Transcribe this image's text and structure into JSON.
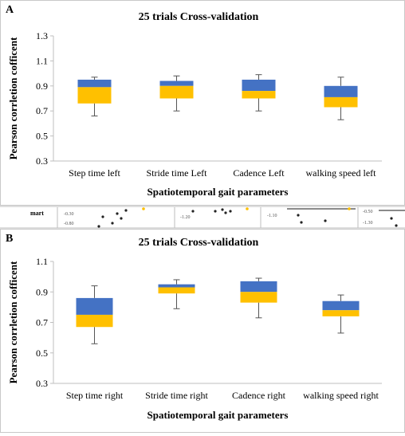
{
  "panels": [
    {
      "letter": "A",
      "chart_data": {
        "type": "box",
        "title": "25 trials Cross-validation",
        "xlabel": "Spatiotemporal gait parameters",
        "ylabel": "Pearson corrletion cofficent",
        "ylim": [
          0.3,
          1.3
        ],
        "yticks": [
          "0.3",
          "0.5",
          "0.7",
          "0.9",
          "1.1",
          "1.3"
        ],
        "grid": false,
        "categories": [
          "Step time left",
          "Stride time Left",
          "Cadence Left",
          "walking speed left"
        ],
        "boxes": [
          {
            "min": 0.66,
            "q1": 0.76,
            "median": 0.89,
            "q3": 0.95,
            "max": 0.97
          },
          {
            "min": 0.7,
            "q1": 0.8,
            "median": 0.9,
            "q3": 0.94,
            "max": 0.98
          },
          {
            "min": 0.7,
            "q1": 0.8,
            "median": 0.86,
            "q3": 0.95,
            "max": 0.99
          },
          {
            "min": 0.63,
            "q1": 0.73,
            "median": 0.81,
            "q3": 0.9,
            "max": 0.97
          }
        ],
        "colors": {
          "upper": "#4472C4",
          "lower": "#FFC000"
        }
      }
    },
    {
      "letter": "B",
      "chart_data": {
        "type": "box",
        "title": "25 trials Cross-validation",
        "xlabel": "Spatiotemporal gait parameters",
        "ylabel": "Pearson corrletion cofficent",
        "ylim": [
          0.3,
          1.1
        ],
        "yticks": [
          "0.3",
          "0.5",
          "0.7",
          "0.9",
          "1.1"
        ],
        "grid": false,
        "categories": [
          "Step time  right",
          "Stride time  right",
          "Cadence  right",
          "walking speed  right"
        ],
        "boxes": [
          {
            "min": 0.56,
            "q1": 0.67,
            "median": 0.75,
            "q3": 0.86,
            "max": 0.94
          },
          {
            "min": 0.79,
            "q1": 0.89,
            "median": 0.93,
            "q3": 0.95,
            "max": 0.98
          },
          {
            "min": 0.73,
            "q1": 0.83,
            "median": 0.9,
            "q3": 0.97,
            "max": 0.99
          },
          {
            "min": 0.63,
            "q1": 0.74,
            "median": 0.78,
            "q3": 0.84,
            "max": 0.88
          }
        ],
        "colors": {
          "upper": "#4472C4",
          "lower": "#FFC000"
        }
      }
    }
  ],
  "strip": {
    "labels": [
      "mart",
      "-0.30",
      "-0.80",
      "-1.20",
      "-1.10",
      "-0.50",
      "-1.30"
    ]
  }
}
